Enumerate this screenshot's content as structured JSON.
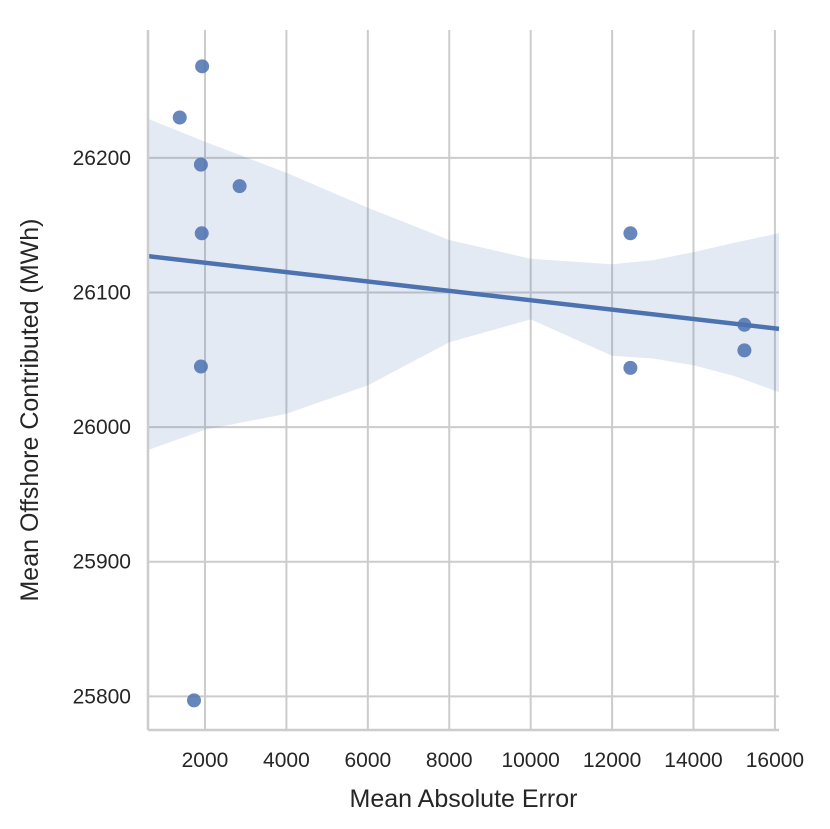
{
  "chart_data": {
    "type": "scatter",
    "title": "",
    "xlabel": "Mean Absolute Error",
    "ylabel": "Mean Offshore Contributed (MWh)",
    "xlim": [
      600,
      16100
    ],
    "ylim": [
      25775,
      26295
    ],
    "xticks": [
      2000,
      4000,
      6000,
      8000,
      10000,
      12000,
      14000,
      16000
    ],
    "yticks": [
      25800,
      25900,
      26000,
      26100,
      26200
    ],
    "grid": true,
    "colors": {
      "points": "#4c72b0",
      "line": "#4c72b0",
      "band": "#4c72b0",
      "grid": "#cccccc"
    },
    "points": [
      {
        "x": 1930,
        "y": 26268
      },
      {
        "x": 1380,
        "y": 26230
      },
      {
        "x": 1900,
        "y": 26195
      },
      {
        "x": 2850,
        "y": 26179
      },
      {
        "x": 1920,
        "y": 26144
      },
      {
        "x": 1900,
        "y": 26045
      },
      {
        "x": 1730,
        "y": 25797
      },
      {
        "x": 12450,
        "y": 26144
      },
      {
        "x": 12450,
        "y": 26044
      },
      {
        "x": 15250,
        "y": 26076
      },
      {
        "x": 15250,
        "y": 26057
      }
    ],
    "regression": {
      "x": [
        600,
        16100
      ],
      "y": [
        26127,
        26073
      ]
    },
    "confidence_band": {
      "x": [
        600,
        2000,
        4000,
        6000,
        8000,
        10000,
        12000,
        13000,
        14000,
        15000,
        16100
      ],
      "upper": [
        26229,
        26212,
        26189,
        26163,
        26139,
        26125,
        26121,
        26124,
        26130,
        26137,
        26144
      ],
      "lower": [
        25983,
        25998,
        26010,
        26031,
        26063,
        26080,
        26053,
        26051,
        26046,
        26038,
        26026
      ]
    }
  }
}
